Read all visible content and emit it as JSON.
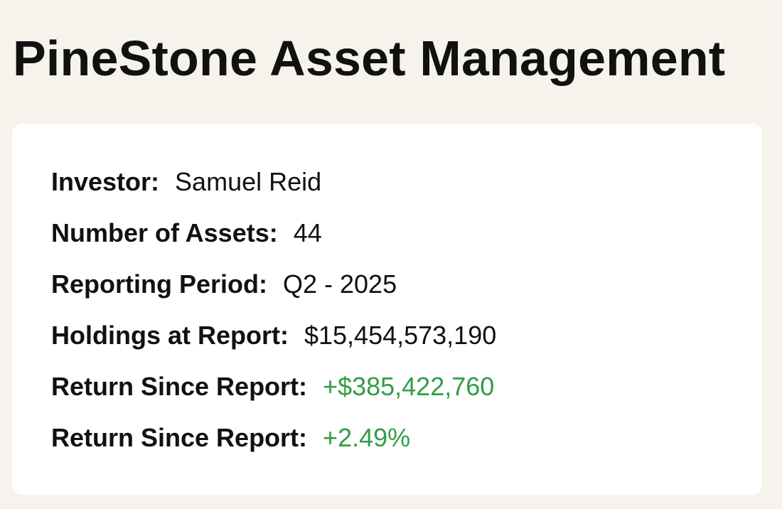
{
  "page": {
    "title": "PineStone Asset Management"
  },
  "colors": {
    "background": "#f6f3ec",
    "card": "#ffffff",
    "text": "#111111",
    "positive": "#2f9e44"
  },
  "summary": {
    "rows": [
      {
        "label": "Investor:",
        "value": "Samuel Reid",
        "tone": "neutral"
      },
      {
        "label": "Number of Assets:",
        "value": "44",
        "tone": "neutral"
      },
      {
        "label": "Reporting Period:",
        "value": "Q2 - 2025",
        "tone": "neutral"
      },
      {
        "label": "Holdings at Report:",
        "value": "$15,454,573,190",
        "tone": "neutral"
      },
      {
        "label": "Return Since Report:",
        "value": "+$385,422,760",
        "tone": "positive"
      },
      {
        "label": "Return Since Report:",
        "value": "+2.49%",
        "tone": "positive"
      }
    ]
  }
}
